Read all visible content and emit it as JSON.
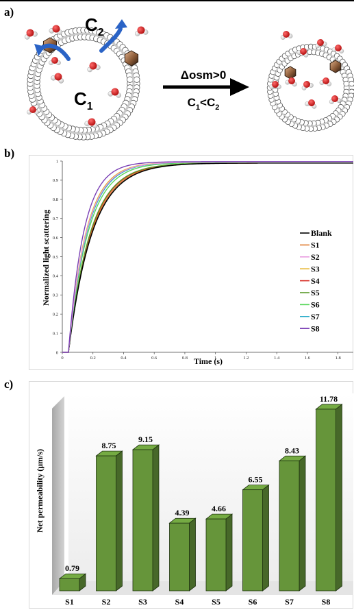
{
  "panels": {
    "a": {
      "letter": "a)",
      "c1_main": "C",
      "c1_sub": "1",
      "c2_main": "C",
      "c2_sub": "2",
      "arrow_label_top": "Δosm>0",
      "arrow_label_bottom_c": "C",
      "arrow_label_bottom_1": "1",
      "arrow_label_bottom_lt": "<C",
      "arrow_label_bottom_2": "2",
      "colors": {
        "water_o": "#e0191b",
        "water_h": "#f2f2f2",
        "channel": "#a5714b",
        "flux_arrow": "#2a63c6"
      }
    },
    "b": {
      "letter": "b)"
    },
    "c": {
      "letter": "c)"
    }
  },
  "chart_data": [
    {
      "panel": "b",
      "type": "line",
      "xlabel": "Time (s)",
      "ylabel": "Normalized light scattering",
      "xlim": [
        0,
        1.9
      ],
      "ylim": [
        0,
        1
      ],
      "x_ticks": [
        "0",
        "0.2",
        "0.4",
        "0.6",
        "0.8",
        "1",
        "1.2",
        "1.4",
        "1.6",
        "1.8"
      ],
      "x_tick_values": [
        0,
        0.2,
        0.4,
        0.6,
        0.8,
        1,
        1.2,
        1.4,
        1.6,
        1.8
      ],
      "y_ticks": [
        "0",
        "0.1",
        "0.2",
        "0.3",
        "0.4",
        "0.5",
        "0.6",
        "0.7",
        "0.8",
        "0.9",
        "1"
      ],
      "y_tick_values": [
        0,
        0.1,
        0.2,
        0.3,
        0.4,
        0.5,
        0.6,
        0.7,
        0.8,
        0.9,
        1
      ],
      "grid": false,
      "legend_position": "right",
      "series": [
        {
          "name": "Blank",
          "color": "#000000",
          "t0": 0.04,
          "tau": 0.155,
          "ymax": 0.99
        },
        {
          "name": "S1",
          "color": "#e07a2e",
          "t0": 0.04,
          "tau": 0.15,
          "ymax": 0.99
        },
        {
          "name": "S2",
          "color": "#e89be0",
          "t0": 0.04,
          "tau": 0.118,
          "ymax": 0.995
        },
        {
          "name": "S3",
          "color": "#e6b631",
          "t0": 0.04,
          "tau": 0.115,
          "ymax": 0.995
        },
        {
          "name": "S4",
          "color": "#d6281f",
          "t0": 0.04,
          "tau": 0.145,
          "ymax": 0.99
        },
        {
          "name": "S5",
          "color": "#5a9a2a",
          "t0": 0.04,
          "tau": 0.143,
          "ymax": 0.99
        },
        {
          "name": "S6",
          "color": "#57d65a",
          "t0": 0.04,
          "tau": 0.128,
          "ymax": 0.993
        },
        {
          "name": "S7",
          "color": "#23a9c8",
          "t0": 0.04,
          "tau": 0.121,
          "ymax": 0.995
        },
        {
          "name": "S8",
          "color": "#7a3fb5",
          "t0": 0.04,
          "tau": 0.1,
          "ymax": 0.997
        }
      ]
    },
    {
      "panel": "c",
      "type": "bar",
      "ylabel": "Net permeability (μm/s)",
      "categories": [
        "S1",
        "S2",
        "S3",
        "S4",
        "S5",
        "S6",
        "S7",
        "S8"
      ],
      "values": [
        0.79,
        8.75,
        9.15,
        4.39,
        4.66,
        6.55,
        8.43,
        11.78
      ],
      "value_labels": [
        "0.79",
        "8.75",
        "9.15",
        "4.39",
        "4.66",
        "6.55",
        "8.43",
        "11.78"
      ],
      "ylim": [
        0,
        12
      ],
      "bar_color": "#66953a",
      "grid": false
    }
  ]
}
